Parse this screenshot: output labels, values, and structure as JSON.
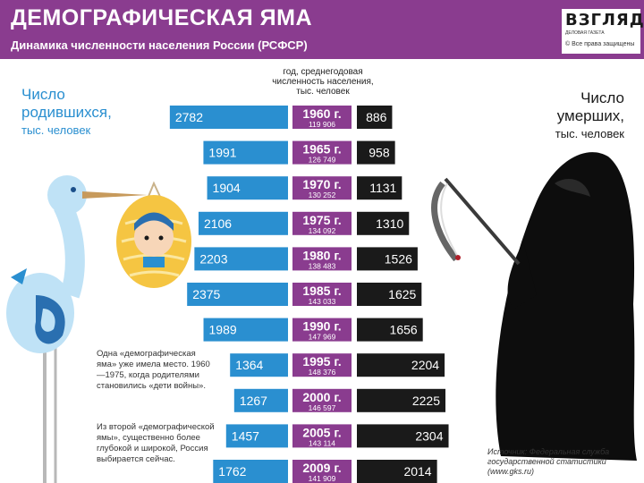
{
  "header": {
    "title": "ДЕМОГРАФИЧЕСКАЯ ЯМА",
    "subtitle": "Динамика численности населения России (РСФСР)",
    "logo": "ВЗГЛЯД",
    "logo_tagline": "ДЕЛОВАЯ ГАЗЕТА",
    "logo_rights": "© Все права защищены"
  },
  "legend": {
    "births_title": "Число родившихся,",
    "births_unit": "тыс. человек",
    "deaths_title": "Число умерших,",
    "deaths_unit": "тыс. человек",
    "population_header": "год, среднегодовая численность населения, тыс. человек"
  },
  "notes": {
    "note1": "Одна «демографическая яма» уже имела место. 1960—1975, когда родителями становились «дети войны».",
    "note2": "Из второй «демографической ямы», существенно более глубокой и широкой, Россия выбирается сейчас.",
    "source": "Источник: Федеральная служба государственной статистики (www.gks.ru)"
  },
  "colors": {
    "header_bg": "#8a3c8f",
    "births_bar": "#2a8fd0",
    "year_box": "#8a3c8f",
    "deaths_bar": "#1a1a1a"
  },
  "chart_data": {
    "type": "bar",
    "categories": [
      "1960 г.",
      "1965 г.",
      "1970 г.",
      "1975 г.",
      "1980 г.",
      "1985 г.",
      "1990 г.",
      "1995 г.",
      "2000 г.",
      "2005 г.",
      "2009 г."
    ],
    "population": [
      "119 906",
      "126 749",
      "130 252",
      "134 092",
      "138 483",
      "143 033",
      "147 969",
      "148 376",
      "146 597",
      "143 114",
      "141 909"
    ],
    "series": [
      {
        "name": "Число родившихся",
        "values": [
          2782,
          1991,
          1904,
          2106,
          2203,
          2375,
          1989,
          1364,
          1267,
          1457,
          1762
        ]
      },
      {
        "name": "Число умерших",
        "values": [
          886,
          958,
          1131,
          1310,
          1526,
          1625,
          1656,
          2204,
          2225,
          2304,
          2014
        ]
      }
    ]
  }
}
